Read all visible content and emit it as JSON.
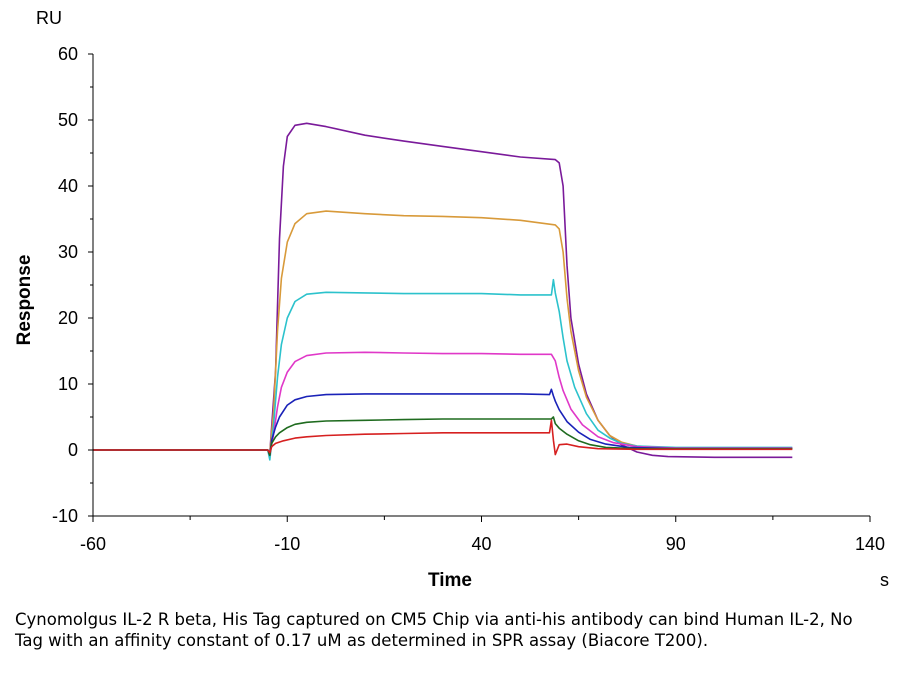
{
  "chart_data": {
    "type": "line",
    "xlabel": "Time",
    "ylabel": "Response",
    "x_unit": "s",
    "y_unit": "RU",
    "xlim": [
      -60,
      140
    ],
    "ylim": [
      -10,
      60
    ],
    "x_ticks": [
      "-60",
      "-10",
      "40",
      "90",
      "140"
    ],
    "y_ticks": [
      "60",
      "50",
      "40",
      "30",
      "20",
      "10",
      "0",
      "-10"
    ],
    "grid": false,
    "legend": "none",
    "series": [
      {
        "color": "#7a1a9a",
        "points": [
          [
            -60,
            0
          ],
          [
            -15,
            0
          ],
          [
            -14.5,
            -0.5
          ],
          [
            -13,
            12
          ],
          [
            -12,
            32
          ],
          [
            -11,
            43
          ],
          [
            -10,
            47.5
          ],
          [
            -8,
            49.2
          ],
          [
            -5,
            49.5
          ],
          [
            0,
            49
          ],
          [
            10,
            47.7
          ],
          [
            20,
            46.8
          ],
          [
            30,
            46
          ],
          [
            40,
            45.2
          ],
          [
            50,
            44.4
          ],
          [
            59,
            44
          ],
          [
            60,
            43.5
          ],
          [
            61,
            40
          ],
          [
            62,
            28
          ],
          [
            63,
            20
          ],
          [
            65,
            13
          ],
          [
            67,
            8.5
          ],
          [
            70,
            4.5
          ],
          [
            73,
            2.2
          ],
          [
            76,
            0.8
          ],
          [
            80,
            -0.3
          ],
          [
            84,
            -0.8
          ],
          [
            88,
            -1
          ],
          [
            100,
            -1.1
          ],
          [
            112,
            -1.1
          ],
          [
            120,
            -1.1
          ]
        ]
      },
      {
        "color": "#d89a3a",
        "points": [
          [
            -60,
            0
          ],
          [
            -15,
            0
          ],
          [
            -14.5,
            -0.5
          ],
          [
            -13.5,
            6
          ],
          [
            -12.5,
            18
          ],
          [
            -11.5,
            26
          ],
          [
            -10,
            31.5
          ],
          [
            -8,
            34.3
          ],
          [
            -5,
            35.8
          ],
          [
            0,
            36.2
          ],
          [
            10,
            35.8
          ],
          [
            20,
            35.5
          ],
          [
            30,
            35.4
          ],
          [
            40,
            35.2
          ],
          [
            50,
            34.8
          ],
          [
            59,
            34.1
          ],
          [
            60,
            33.5
          ],
          [
            61,
            30
          ],
          [
            62,
            23
          ],
          [
            63,
            18
          ],
          [
            65,
            12
          ],
          [
            67,
            8
          ],
          [
            70,
            4.5
          ],
          [
            73,
            2.2
          ],
          [
            76,
            1.2
          ],
          [
            80,
            0.6
          ],
          [
            90,
            0.3
          ],
          [
            120,
            0.3
          ]
        ]
      },
      {
        "color": "#2cc2cc",
        "points": [
          [
            -60,
            0
          ],
          [
            -15,
            0
          ],
          [
            -14.5,
            -1.5
          ],
          [
            -13.5,
            4
          ],
          [
            -12.5,
            11
          ],
          [
            -11.5,
            16
          ],
          [
            -10,
            20
          ],
          [
            -8,
            22.5
          ],
          [
            -5,
            23.6
          ],
          [
            0,
            23.9
          ],
          [
            10,
            23.8
          ],
          [
            20,
            23.7
          ],
          [
            30,
            23.7
          ],
          [
            40,
            23.7
          ],
          [
            50,
            23.5
          ],
          [
            58,
            23.5
          ],
          [
            58.5,
            25.8
          ],
          [
            59,
            23.8
          ],
          [
            60,
            21
          ],
          [
            61,
            17
          ],
          [
            62,
            13.5
          ],
          [
            64,
            9.5
          ],
          [
            67,
            5.5
          ],
          [
            70,
            3
          ],
          [
            73,
            1.8
          ],
          [
            76,
            1
          ],
          [
            80,
            0.6
          ],
          [
            90,
            0.4
          ],
          [
            120,
            0.4
          ]
        ]
      },
      {
        "color": "#e038c8",
        "points": [
          [
            -60,
            0
          ],
          [
            -15,
            0
          ],
          [
            -14.5,
            -0.8
          ],
          [
            -13.5,
            2.5
          ],
          [
            -12.5,
            6.5
          ],
          [
            -11.5,
            9.5
          ],
          [
            -10,
            11.8
          ],
          [
            -8,
            13.4
          ],
          [
            -5,
            14.3
          ],
          [
            0,
            14.7
          ],
          [
            10,
            14.8
          ],
          [
            20,
            14.7
          ],
          [
            30,
            14.6
          ],
          [
            40,
            14.6
          ],
          [
            50,
            14.5
          ],
          [
            58,
            14.5
          ],
          [
            59,
            13.5
          ],
          [
            60,
            11
          ],
          [
            61,
            9
          ],
          [
            63,
            6.2
          ],
          [
            66,
            3.8
          ],
          [
            70,
            2
          ],
          [
            74,
            1.1
          ],
          [
            80,
            0.5
          ],
          [
            90,
            0.3
          ],
          [
            120,
            0.3
          ]
        ]
      },
      {
        "color": "#1a22b8",
        "points": [
          [
            -60,
            0
          ],
          [
            -15,
            0
          ],
          [
            -14.5,
            -0.8
          ],
          [
            -14,
            1.5
          ],
          [
            -13,
            3.5
          ],
          [
            -12,
            5
          ],
          [
            -10,
            6.8
          ],
          [
            -8,
            7.6
          ],
          [
            -5,
            8.1
          ],
          [
            0,
            8.4
          ],
          [
            10,
            8.5
          ],
          [
            20,
            8.5
          ],
          [
            30,
            8.5
          ],
          [
            40,
            8.5
          ],
          [
            50,
            8.5
          ],
          [
            57.5,
            8.4
          ],
          [
            58,
            9.2
          ],
          [
            58.5,
            8.2
          ],
          [
            59,
            7.4
          ],
          [
            60,
            6.1
          ],
          [
            62,
            4.3
          ],
          [
            65,
            2.7
          ],
          [
            68,
            1.6
          ],
          [
            72,
            0.9
          ],
          [
            78,
            0.4
          ],
          [
            90,
            0.2
          ],
          [
            120,
            0.2
          ]
        ]
      },
      {
        "color": "#1f6b1f",
        "points": [
          [
            -60,
            0
          ],
          [
            -15,
            0
          ],
          [
            -14.5,
            -0.8
          ],
          [
            -14,
            1
          ],
          [
            -13,
            2
          ],
          [
            -12,
            2.6
          ],
          [
            -10,
            3.4
          ],
          [
            -8,
            3.9
          ],
          [
            -5,
            4.2
          ],
          [
            0,
            4.4
          ],
          [
            10,
            4.5
          ],
          [
            20,
            4.6
          ],
          [
            30,
            4.7
          ],
          [
            40,
            4.7
          ],
          [
            50,
            4.7
          ],
          [
            58,
            4.7
          ],
          [
            58.5,
            5
          ],
          [
            59,
            4
          ],
          [
            60,
            3.3
          ],
          [
            62,
            2.4
          ],
          [
            65,
            1.4
          ],
          [
            68,
            0.8
          ],
          [
            72,
            0.4
          ],
          [
            80,
            0.2
          ],
          [
            120,
            0.2
          ]
        ]
      },
      {
        "color": "#d62020",
        "points": [
          [
            -60,
            0
          ],
          [
            -15,
            0
          ],
          [
            -14.5,
            -0.4
          ],
          [
            -14,
            0.5
          ],
          [
            -13,
            1
          ],
          [
            -11,
            1.4
          ],
          [
            -8,
            1.8
          ],
          [
            -5,
            2
          ],
          [
            0,
            2.2
          ],
          [
            10,
            2.4
          ],
          [
            20,
            2.5
          ],
          [
            30,
            2.6
          ],
          [
            40,
            2.6
          ],
          [
            50,
            2.6
          ],
          [
            57.5,
            2.6
          ],
          [
            58,
            4.5
          ],
          [
            58.5,
            1.5
          ],
          [
            59,
            -0.7
          ],
          [
            60,
            0.8
          ],
          [
            62,
            0.9
          ],
          [
            65,
            0.5
          ],
          [
            70,
            0.2
          ],
          [
            80,
            0.1
          ],
          [
            120,
            0.1
          ]
        ]
      }
    ]
  },
  "caption": "Cynomolgus IL-2 R beta, His Tag captured on CM5 Chip via anti-his antibody can bind Human IL-2, No Tag with an affinity constant of 0.17 uM as determined in SPR assay (Biacore T200)."
}
